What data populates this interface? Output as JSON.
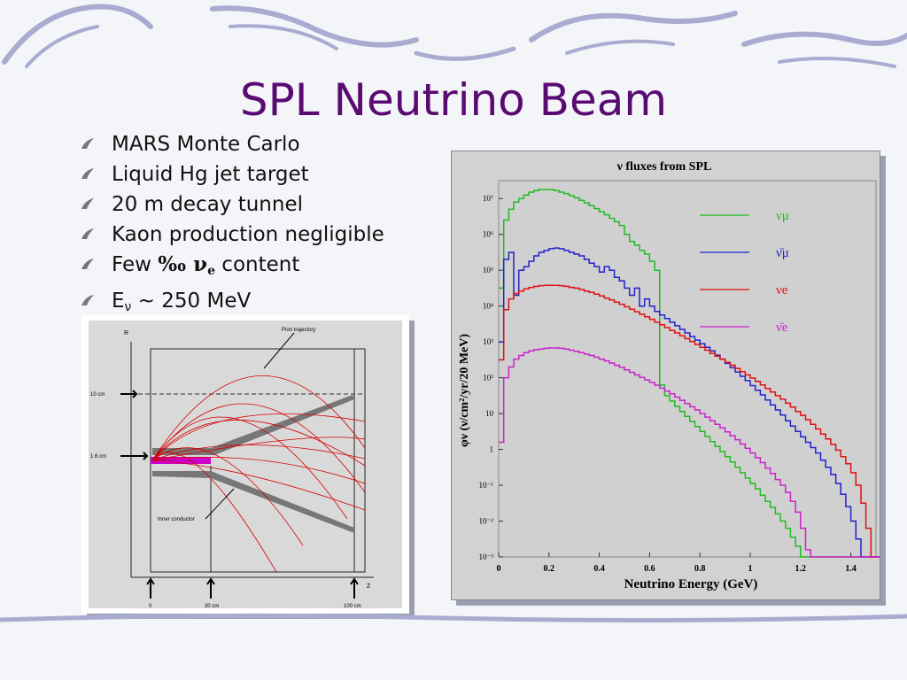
{
  "slide": {
    "title": "SPL Neutrino Beam",
    "bullets": [
      {
        "text": "MARS Monte Carlo"
      },
      {
        "text": "Liquid Hg jet target"
      },
      {
        "text": "20 m decay tunnel"
      },
      {
        "text": "Kaon production negligible"
      },
      {
        "pre": "Few ",
        "sym": "‰ ν",
        "sub": "e",
        "post": " content"
      },
      {
        "pre": "E",
        "sub": "ν",
        "post": " ~ 250 MeV"
      }
    ],
    "colors": {
      "title": "#5a0b72",
      "decor": "#9fa3c6"
    }
  },
  "horn_diagram": {
    "labels": {
      "r_axis": "R",
      "z_axis": "Z",
      "pion_trajectory": "Pion trajectory",
      "inner_conductor": "Inner conductor",
      "r_10cm": "10 cm",
      "r_1_6cm": "1.6 cm",
      "z_0": "0",
      "z_30cm": "30 cm",
      "z_100cm": "100 cm"
    },
    "colors": {
      "trajectory": "#d40000",
      "target": "#cc00cc",
      "conductor": "#777777"
    }
  },
  "chart_data": {
    "type": "line",
    "title": "ν fluxes from SPL",
    "xlabel": "Neutrino Energy (GeV)",
    "ylabel": "φν (ν/cm²/yr/20 MeV)",
    "xlim": [
      0,
      1.5
    ],
    "ylim_log10": [
      -3,
      7.5
    ],
    "y_scale": "log",
    "x_ticks": [
      "0",
      "0.2",
      "0.4",
      "0.6",
      "0.8",
      "1",
      "1.2",
      "1.4"
    ],
    "y_ticks": [
      "10⁻³",
      "10⁻²",
      "10⁻¹",
      "1",
      "10",
      "10²",
      "10³",
      "10⁴",
      "10⁵",
      "10⁶",
      "10⁷"
    ],
    "legend_position": "top-right",
    "series": [
      {
        "name": "νμ",
        "color": "#22bb22",
        "x": [
          0,
          0.02,
          0.04,
          0.06,
          0.08,
          0.1,
          0.12,
          0.14,
          0.16,
          0.18,
          0.2,
          0.22,
          0.24,
          0.26,
          0.28,
          0.3,
          0.32,
          0.34,
          0.36,
          0.38,
          0.4,
          0.42,
          0.44,
          0.46,
          0.48,
          0.5,
          0.52,
          0.54,
          0.56,
          0.58,
          0.6,
          0.62,
          0.64,
          0.66,
          0.68,
          0.7,
          0.72,
          0.74,
          0.76,
          0.78,
          0.8,
          0.82,
          0.84,
          0.86,
          0.88,
          0.9,
          0.92,
          0.94,
          0.96,
          0.98,
          1.0,
          1.02,
          1.04,
          1.06,
          1.08,
          1.1,
          1.12,
          1.14,
          1.16,
          1.18,
          1.2,
          1.22,
          1.24,
          1.26,
          1.28,
          1.3,
          1.32,
          1.34,
          1.36,
          1.38,
          1.4,
          1.42,
          1.44,
          1.46,
          1.48,
          1.5
        ],
        "log10_y": [
          4.5,
          6.4,
          6.7,
          6.9,
          7.0,
          7.1,
          7.18,
          7.22,
          7.25,
          7.25,
          7.25,
          7.22,
          7.18,
          7.14,
          7.08,
          7.02,
          6.95,
          6.88,
          6.8,
          6.72,
          6.63,
          6.55,
          6.45,
          6.35,
          6.25,
          6.0,
          5.8,
          5.7,
          5.55,
          5.45,
          5.25,
          5.0,
          1.8,
          1.5,
          1.35,
          1.2,
          1.06,
          0.92,
          0.78,
          0.64,
          0.5,
          0.36,
          0.22,
          0.08,
          -0.06,
          -0.2,
          -0.35,
          -0.5,
          -0.65,
          -0.8,
          -0.95,
          -1.1,
          -1.28,
          -1.45,
          -1.62,
          -1.8,
          -2.0,
          -2.2,
          -2.45,
          -2.7,
          -3.0,
          -3.0,
          -3.0,
          -3.0,
          -3.0,
          -3.0,
          -3.0,
          -3.0,
          -3.0,
          -3.0,
          -3.0,
          -3.0,
          -3.0,
          -3.0,
          -3.0,
          -3.0
        ]
      },
      {
        "name": "ν̄μ",
        "color": "#2222cc",
        "x": [
          0,
          0.02,
          0.04,
          0.06,
          0.08,
          0.1,
          0.12,
          0.14,
          0.16,
          0.18,
          0.2,
          0.22,
          0.24,
          0.26,
          0.28,
          0.3,
          0.32,
          0.34,
          0.36,
          0.38,
          0.4,
          0.42,
          0.44,
          0.46,
          0.48,
          0.5,
          0.52,
          0.54,
          0.56,
          0.58,
          0.6,
          0.62,
          0.64,
          0.66,
          0.68,
          0.7,
          0.72,
          0.74,
          0.76,
          0.78,
          0.8,
          0.82,
          0.84,
          0.86,
          0.88,
          0.9,
          0.92,
          0.94,
          0.96,
          0.98,
          1.0,
          1.02,
          1.04,
          1.06,
          1.08,
          1.1,
          1.12,
          1.14,
          1.16,
          1.18,
          1.2,
          1.22,
          1.24,
          1.26,
          1.28,
          1.3,
          1.32,
          1.34,
          1.36,
          1.38,
          1.4,
          1.42,
          1.44,
          1.46,
          1.48,
          1.5
        ],
        "log10_y": [
          3.0,
          5.3,
          5.5,
          4.3,
          5.0,
          5.1,
          5.25,
          5.4,
          5.5,
          5.55,
          5.6,
          5.62,
          5.6,
          5.55,
          5.5,
          5.45,
          5.4,
          5.3,
          5.2,
          5.1,
          4.95,
          5.1,
          5.0,
          4.8,
          4.7,
          4.5,
          4.3,
          4.5,
          4.0,
          4.2,
          4.0,
          3.85,
          3.75,
          3.65,
          3.55,
          3.45,
          3.35,
          3.25,
          3.15,
          3.05,
          2.95,
          2.85,
          2.75,
          2.63,
          2.52,
          2.4,
          2.28,
          2.16,
          2.04,
          1.92,
          1.78,
          1.65,
          1.52,
          1.38,
          1.24,
          1.1,
          0.96,
          0.8,
          0.65,
          0.5,
          0.35,
          0.2,
          0.05,
          -0.1,
          -0.3,
          -0.5,
          -0.7,
          -0.95,
          -1.25,
          -1.6,
          -2.0,
          -2.5,
          -3.0,
          -3.0,
          -3.0,
          -3.0
        ]
      },
      {
        "name": "νe",
        "color": "#dd1111",
        "x": [
          0,
          0.02,
          0.04,
          0.06,
          0.08,
          0.1,
          0.12,
          0.14,
          0.16,
          0.18,
          0.2,
          0.22,
          0.24,
          0.26,
          0.28,
          0.3,
          0.32,
          0.34,
          0.36,
          0.38,
          0.4,
          0.42,
          0.44,
          0.46,
          0.48,
          0.5,
          0.52,
          0.54,
          0.56,
          0.58,
          0.6,
          0.62,
          0.64,
          0.66,
          0.68,
          0.7,
          0.72,
          0.74,
          0.76,
          0.78,
          0.8,
          0.82,
          0.84,
          0.86,
          0.88,
          0.9,
          0.92,
          0.94,
          0.96,
          0.98,
          1.0,
          1.02,
          1.04,
          1.06,
          1.08,
          1.1,
          1.12,
          1.14,
          1.16,
          1.18,
          1.2,
          1.22,
          1.24,
          1.26,
          1.28,
          1.3,
          1.32,
          1.34,
          1.36,
          1.38,
          1.4,
          1.42,
          1.44,
          1.46,
          1.48,
          1.5
        ],
        "log10_y": [
          2.5,
          3.9,
          4.2,
          4.35,
          4.42,
          4.48,
          4.52,
          4.55,
          4.57,
          4.58,
          4.58,
          4.58,
          4.57,
          4.55,
          4.52,
          4.5,
          4.46,
          4.42,
          4.38,
          4.33,
          4.28,
          4.22,
          4.17,
          4.11,
          4.05,
          3.98,
          3.91,
          3.84,
          3.77,
          3.7,
          3.63,
          3.55,
          3.48,
          3.4,
          3.32,
          3.25,
          3.17,
          3.09,
          3.01,
          2.93,
          2.85,
          2.77,
          2.68,
          2.6,
          2.52,
          2.43,
          2.35,
          2.26,
          2.17,
          2.08,
          1.99,
          1.9,
          1.8,
          1.7,
          1.6,
          1.5,
          1.4,
          1.29,
          1.18,
          1.06,
          0.95,
          0.83,
          0.7,
          0.57,
          0.43,
          0.29,
          0.14,
          -0.02,
          -0.2,
          -0.4,
          -0.65,
          -1.0,
          -1.5,
          -2.2,
          -3.0,
          -3.0
        ]
      },
      {
        "name": "ν̄e",
        "color": "#cc22cc",
        "x": [
          0,
          0.02,
          0.04,
          0.06,
          0.08,
          0.1,
          0.12,
          0.14,
          0.16,
          0.18,
          0.2,
          0.22,
          0.24,
          0.26,
          0.28,
          0.3,
          0.32,
          0.34,
          0.36,
          0.38,
          0.4,
          0.42,
          0.44,
          0.46,
          0.48,
          0.5,
          0.52,
          0.54,
          0.56,
          0.58,
          0.6,
          0.62,
          0.64,
          0.66,
          0.68,
          0.7,
          0.72,
          0.74,
          0.76,
          0.78,
          0.8,
          0.82,
          0.84,
          0.86,
          0.88,
          0.9,
          0.92,
          0.94,
          0.96,
          0.98,
          1.0,
          1.02,
          1.04,
          1.06,
          1.08,
          1.1,
          1.12,
          1.14,
          1.16,
          1.18,
          1.2,
          1.22,
          1.24,
          1.26,
          1.28,
          1.3,
          1.32,
          1.34,
          1.36,
          1.38,
          1.4,
          1.42,
          1.44,
          1.46,
          1.48,
          1.5
        ],
        "log10_y": [
          0.2,
          2.0,
          2.3,
          2.52,
          2.62,
          2.7,
          2.75,
          2.78,
          2.8,
          2.82,
          2.83,
          2.83,
          2.82,
          2.8,
          2.77,
          2.74,
          2.7,
          2.66,
          2.62,
          2.57,
          2.52,
          2.47,
          2.41,
          2.35,
          2.29,
          2.22,
          2.15,
          2.08,
          2.01,
          1.94,
          1.87,
          1.79,
          1.71,
          1.63,
          1.55,
          1.46,
          1.37,
          1.28,
          1.19,
          1.1,
          1.0,
          0.9,
          0.8,
          0.7,
          0.6,
          0.49,
          0.38,
          0.27,
          0.15,
          0.03,
          -0.1,
          -0.23,
          -0.37,
          -0.52,
          -0.67,
          -0.84,
          -1.0,
          -1.2,
          -1.45,
          -1.75,
          -2.2,
          -2.8,
          -3.0,
          -3.0,
          -3.0,
          -3.0,
          -3.0,
          -3.0,
          -3.0,
          -3.0,
          -3.0,
          -3.0,
          -3.0,
          -3.0,
          -3.0,
          -3.0
        ]
      }
    ]
  }
}
